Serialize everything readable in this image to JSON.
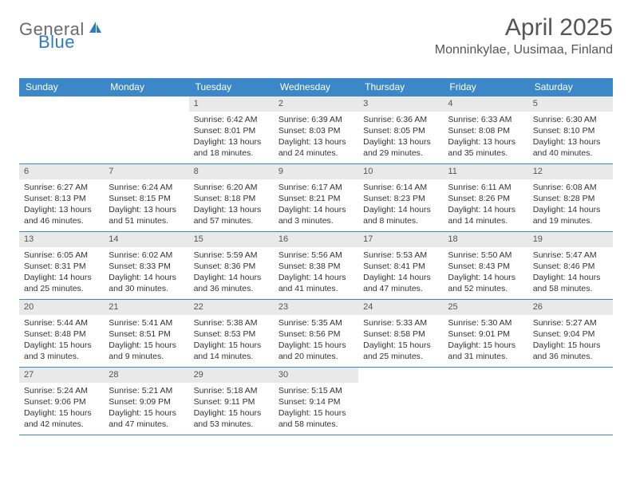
{
  "brand": {
    "general": "General",
    "blue": "Blue"
  },
  "title": "April 2025",
  "location": "Monninkylae, Uusimaa, Finland",
  "colors": {
    "header_bg": "#3b87c8",
    "header_text": "#ffffff",
    "daynum_bg": "#e9e9e9",
    "brand_gray": "#6b6b6b",
    "brand_blue": "#2e7cc0",
    "rule": "#3b87c8"
  },
  "day_headers": [
    "Sunday",
    "Monday",
    "Tuesday",
    "Wednesday",
    "Thursday",
    "Friday",
    "Saturday"
  ],
  "weeks": [
    [
      {
        "n": "",
        "lines": []
      },
      {
        "n": "",
        "lines": []
      },
      {
        "n": "1",
        "lines": [
          "Sunrise: 6:42 AM",
          "Sunset: 8:01 PM",
          "Daylight: 13 hours and 18 minutes."
        ]
      },
      {
        "n": "2",
        "lines": [
          "Sunrise: 6:39 AM",
          "Sunset: 8:03 PM",
          "Daylight: 13 hours and 24 minutes."
        ]
      },
      {
        "n": "3",
        "lines": [
          "Sunrise: 6:36 AM",
          "Sunset: 8:05 PM",
          "Daylight: 13 hours and 29 minutes."
        ]
      },
      {
        "n": "4",
        "lines": [
          "Sunrise: 6:33 AM",
          "Sunset: 8:08 PM",
          "Daylight: 13 hours and 35 minutes."
        ]
      },
      {
        "n": "5",
        "lines": [
          "Sunrise: 6:30 AM",
          "Sunset: 8:10 PM",
          "Daylight: 13 hours and 40 minutes."
        ]
      }
    ],
    [
      {
        "n": "6",
        "lines": [
          "Sunrise: 6:27 AM",
          "Sunset: 8:13 PM",
          "Daylight: 13 hours and 46 minutes."
        ]
      },
      {
        "n": "7",
        "lines": [
          "Sunrise: 6:24 AM",
          "Sunset: 8:15 PM",
          "Daylight: 13 hours and 51 minutes."
        ]
      },
      {
        "n": "8",
        "lines": [
          "Sunrise: 6:20 AM",
          "Sunset: 8:18 PM",
          "Daylight: 13 hours and 57 minutes."
        ]
      },
      {
        "n": "9",
        "lines": [
          "Sunrise: 6:17 AM",
          "Sunset: 8:21 PM",
          "Daylight: 14 hours and 3 minutes."
        ]
      },
      {
        "n": "10",
        "lines": [
          "Sunrise: 6:14 AM",
          "Sunset: 8:23 PM",
          "Daylight: 14 hours and 8 minutes."
        ]
      },
      {
        "n": "11",
        "lines": [
          "Sunrise: 6:11 AM",
          "Sunset: 8:26 PM",
          "Daylight: 14 hours and 14 minutes."
        ]
      },
      {
        "n": "12",
        "lines": [
          "Sunrise: 6:08 AM",
          "Sunset: 8:28 PM",
          "Daylight: 14 hours and 19 minutes."
        ]
      }
    ],
    [
      {
        "n": "13",
        "lines": [
          "Sunrise: 6:05 AM",
          "Sunset: 8:31 PM",
          "Daylight: 14 hours and 25 minutes."
        ]
      },
      {
        "n": "14",
        "lines": [
          "Sunrise: 6:02 AM",
          "Sunset: 8:33 PM",
          "Daylight: 14 hours and 30 minutes."
        ]
      },
      {
        "n": "15",
        "lines": [
          "Sunrise: 5:59 AM",
          "Sunset: 8:36 PM",
          "Daylight: 14 hours and 36 minutes."
        ]
      },
      {
        "n": "16",
        "lines": [
          "Sunrise: 5:56 AM",
          "Sunset: 8:38 PM",
          "Daylight: 14 hours and 41 minutes."
        ]
      },
      {
        "n": "17",
        "lines": [
          "Sunrise: 5:53 AM",
          "Sunset: 8:41 PM",
          "Daylight: 14 hours and 47 minutes."
        ]
      },
      {
        "n": "18",
        "lines": [
          "Sunrise: 5:50 AM",
          "Sunset: 8:43 PM",
          "Daylight: 14 hours and 52 minutes."
        ]
      },
      {
        "n": "19",
        "lines": [
          "Sunrise: 5:47 AM",
          "Sunset: 8:46 PM",
          "Daylight: 14 hours and 58 minutes."
        ]
      }
    ],
    [
      {
        "n": "20",
        "lines": [
          "Sunrise: 5:44 AM",
          "Sunset: 8:48 PM",
          "Daylight: 15 hours and 3 minutes."
        ]
      },
      {
        "n": "21",
        "lines": [
          "Sunrise: 5:41 AM",
          "Sunset: 8:51 PM",
          "Daylight: 15 hours and 9 minutes."
        ]
      },
      {
        "n": "22",
        "lines": [
          "Sunrise: 5:38 AM",
          "Sunset: 8:53 PM",
          "Daylight: 15 hours and 14 minutes."
        ]
      },
      {
        "n": "23",
        "lines": [
          "Sunrise: 5:35 AM",
          "Sunset: 8:56 PM",
          "Daylight: 15 hours and 20 minutes."
        ]
      },
      {
        "n": "24",
        "lines": [
          "Sunrise: 5:33 AM",
          "Sunset: 8:58 PM",
          "Daylight: 15 hours and 25 minutes."
        ]
      },
      {
        "n": "25",
        "lines": [
          "Sunrise: 5:30 AM",
          "Sunset: 9:01 PM",
          "Daylight: 15 hours and 31 minutes."
        ]
      },
      {
        "n": "26",
        "lines": [
          "Sunrise: 5:27 AM",
          "Sunset: 9:04 PM",
          "Daylight: 15 hours and 36 minutes."
        ]
      }
    ],
    [
      {
        "n": "27",
        "lines": [
          "Sunrise: 5:24 AM",
          "Sunset: 9:06 PM",
          "Daylight: 15 hours and 42 minutes."
        ]
      },
      {
        "n": "28",
        "lines": [
          "Sunrise: 5:21 AM",
          "Sunset: 9:09 PM",
          "Daylight: 15 hours and 47 minutes."
        ]
      },
      {
        "n": "29",
        "lines": [
          "Sunrise: 5:18 AM",
          "Sunset: 9:11 PM",
          "Daylight: 15 hours and 53 minutes."
        ]
      },
      {
        "n": "30",
        "lines": [
          "Sunrise: 5:15 AM",
          "Sunset: 9:14 PM",
          "Daylight: 15 hours and 58 minutes."
        ]
      },
      {
        "n": "",
        "lines": []
      },
      {
        "n": "",
        "lines": []
      },
      {
        "n": "",
        "lines": []
      }
    ]
  ]
}
